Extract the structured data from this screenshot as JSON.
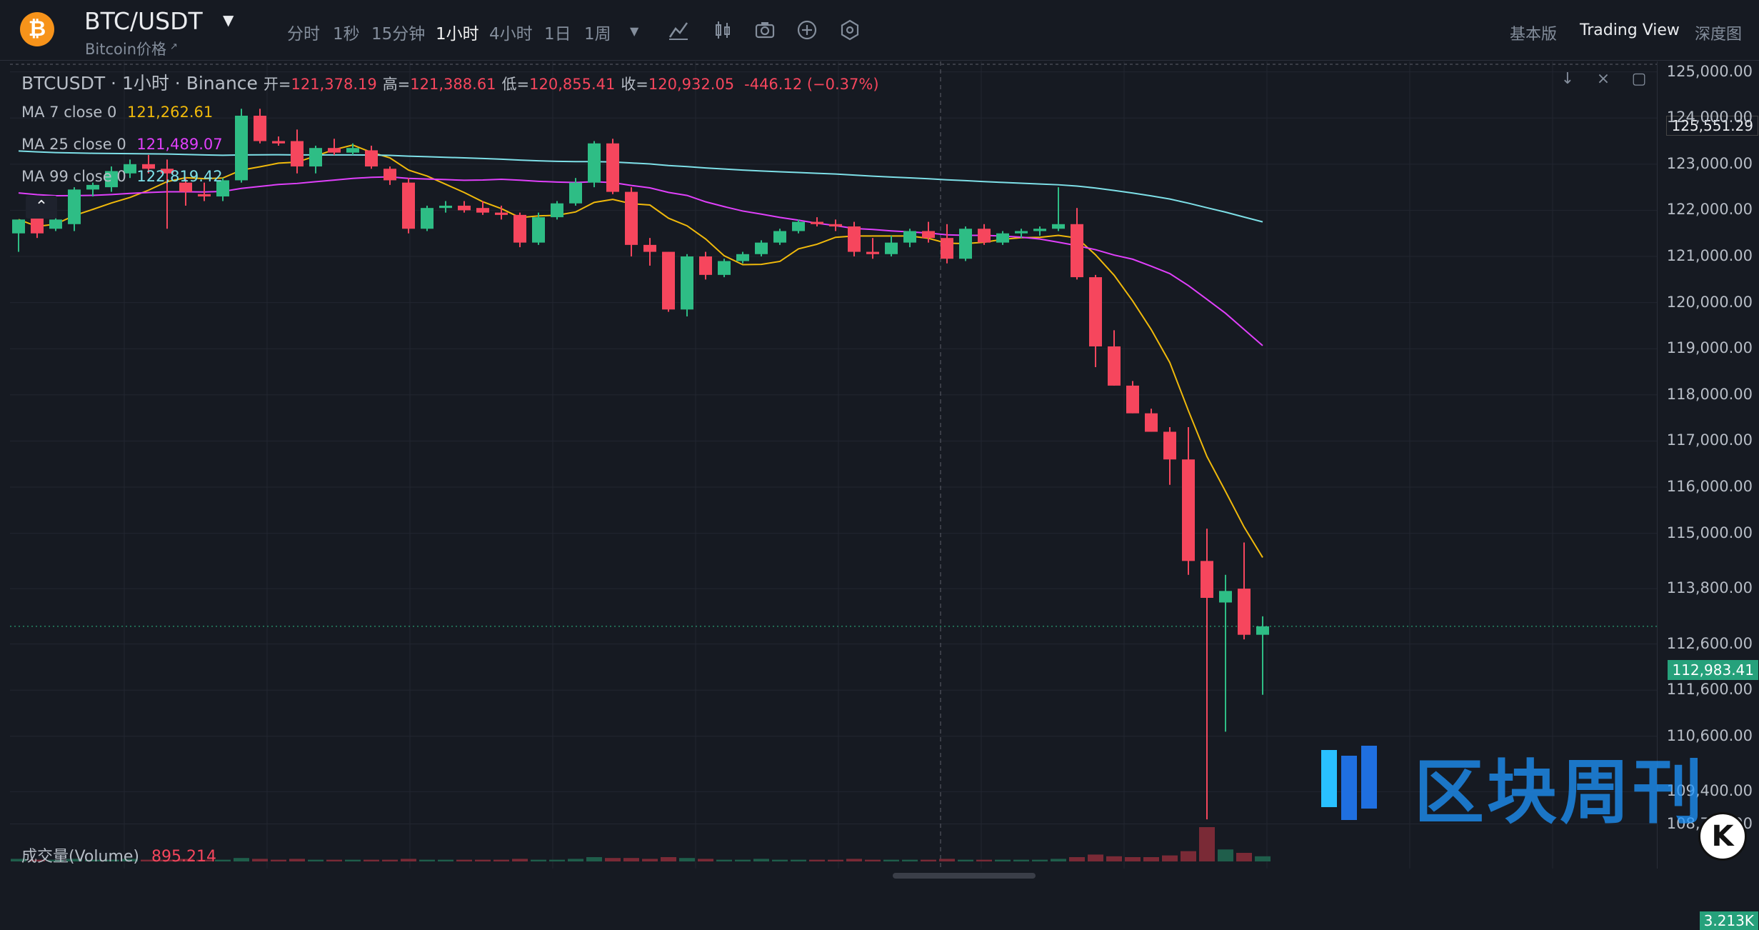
{
  "header": {
    "coin_symbol": "₿",
    "pair": "BTC/USDT",
    "pair_caret": "▼",
    "subtitle": "Bitcoin价格",
    "subtitle_arrow": "↗",
    "timeframes": [
      "分时",
      "1秒",
      "15分钟",
      "1小时",
      "4小时",
      "1日",
      "1周"
    ],
    "active_timeframe": "1小时",
    "more_caret": "▼",
    "tools": [
      "indicator-icon",
      "candle-type-icon",
      "camera-icon",
      "add-icon",
      "settings-icon"
    ],
    "right_links": [
      "基本版",
      "Trading View",
      "深度图"
    ],
    "active_view": "Trading View"
  },
  "legend": {
    "symbol_line": "BTCUSDT · 1小时 · Binance",
    "open_label": "开=",
    "open": "121,378.19",
    "high_label": "高=",
    "high": "121,388.61",
    "low_label": "低=",
    "low": "120,855.41",
    "close_label": "收=",
    "close": "120,932.05",
    "change": "-446.12 (−0.37%)"
  },
  "ma_lines": [
    {
      "label": "MA 7 close 0",
      "value": "121,262.61",
      "color": "#f0b90b"
    },
    {
      "label": "MA 25 close 0",
      "value": "121,489.07",
      "color": "#e040fb"
    },
    {
      "label": "MA 99 close 0",
      "value": "122,819.42",
      "color": "#7ee0e8"
    }
  ],
  "volume": {
    "label": "成交量(Volume)",
    "value": "895.214",
    "axis_tag": "3.213K"
  },
  "price_axis": {
    "top_price": "125,551.29",
    "labels": [
      "125,000.00",
      "124,000.00",
      "123,000.00",
      "122,000.00",
      "121,000.00",
      "120,000.00",
      "119,000.00",
      "118,000.00",
      "117,000.00",
      "116,000.00",
      "115,000.00",
      "113,800.00",
      "112,600.00",
      "111,600.00",
      "110,600.00",
      "109,400.00",
      "108,700.00"
    ],
    "current_price": "112,983.41"
  },
  "watermark": {
    "text": "区块周刊",
    "badge": "K"
  },
  "colors": {
    "up": "#2ebd85",
    "down": "#f6465d",
    "background": "#161a22"
  },
  "chart_data": {
    "type": "candlestick",
    "ylim": [
      108500,
      125600
    ],
    "series": [
      {
        "o": 121500,
        "h": 121700,
        "l": 121100,
        "c": 121800
      },
      {
        "o": 121900,
        "h": 122050,
        "l": 121400,
        "c": 121500
      },
      {
        "o": 121600,
        "h": 122050,
        "l": 121550,
        "c": 121800
      },
      {
        "o": 121700,
        "h": 122500,
        "l": 121550,
        "c": 122450
      },
      {
        "o": 122450,
        "h": 122600,
        "l": 122300,
        "c": 122550
      },
      {
        "o": 122500,
        "h": 122950,
        "l": 122400,
        "c": 122850
      },
      {
        "o": 122800,
        "h": 123100,
        "l": 122700,
        "c": 123000
      },
      {
        "o": 123000,
        "h": 123200,
        "l": 122800,
        "c": 122900
      },
      {
        "o": 122900,
        "h": 123100,
        "l": 121600,
        "c": 122800
      },
      {
        "o": 122600,
        "h": 122700,
        "l": 122100,
        "c": 122400
      },
      {
        "o": 122350,
        "h": 122600,
        "l": 122200,
        "c": 122300
      },
      {
        "o": 122300,
        "h": 122700,
        "l": 122200,
        "c": 122650
      },
      {
        "o": 122650,
        "h": 124200,
        "l": 122600,
        "c": 124050
      },
      {
        "o": 124050,
        "h": 124200,
        "l": 123450,
        "c": 123500
      },
      {
        "o": 123500,
        "h": 123600,
        "l": 123400,
        "c": 123450
      },
      {
        "o": 123500,
        "h": 123750,
        "l": 122800,
        "c": 122950
      },
      {
        "o": 122950,
        "h": 123400,
        "l": 122800,
        "c": 123350
      },
      {
        "o": 123350,
        "h": 123550,
        "l": 123200,
        "c": 123250
      },
      {
        "o": 123250,
        "h": 123450,
        "l": 123200,
        "c": 123350
      },
      {
        "o": 123300,
        "h": 123400,
        "l": 122900,
        "c": 122950
      },
      {
        "o": 122900,
        "h": 122950,
        "l": 122550,
        "c": 122650
      },
      {
        "o": 122600,
        "h": 122700,
        "l": 121500,
        "c": 121600
      },
      {
        "o": 121600,
        "h": 122100,
        "l": 121550,
        "c": 122050
      },
      {
        "o": 122050,
        "h": 122200,
        "l": 121950,
        "c": 122100
      },
      {
        "o": 122100,
        "h": 122200,
        "l": 121950,
        "c": 122000
      },
      {
        "o": 122050,
        "h": 122200,
        "l": 121900,
        "c": 121950
      },
      {
        "o": 121950,
        "h": 122100,
        "l": 121800,
        "c": 121900
      },
      {
        "o": 121900,
        "h": 121950,
        "l": 121200,
        "c": 121300
      },
      {
        "o": 121300,
        "h": 121950,
        "l": 121250,
        "c": 121850
      },
      {
        "o": 121850,
        "h": 122200,
        "l": 121800,
        "c": 122150
      },
      {
        "o": 122150,
        "h": 122700,
        "l": 122100,
        "c": 122600
      },
      {
        "o": 122600,
        "h": 123500,
        "l": 122500,
        "c": 123450
      },
      {
        "o": 123450,
        "h": 123550,
        "l": 122350,
        "c": 122400
      },
      {
        "o": 122400,
        "h": 122500,
        "l": 121000,
        "c": 121250
      },
      {
        "o": 121250,
        "h": 121400,
        "l": 120800,
        "c": 121100
      },
      {
        "o": 121100,
        "h": 121100,
        "l": 119800,
        "c": 119850
      },
      {
        "o": 119850,
        "h": 121050,
        "l": 119700,
        "c": 121000
      },
      {
        "o": 121000,
        "h": 121100,
        "l": 120500,
        "c": 120600
      },
      {
        "o": 120600,
        "h": 120950,
        "l": 120550,
        "c": 120900
      },
      {
        "o": 120900,
        "h": 121100,
        "l": 120850,
        "c": 121050
      },
      {
        "o": 121050,
        "h": 121350,
        "l": 121000,
        "c": 121300
      },
      {
        "o": 121300,
        "h": 121600,
        "l": 121250,
        "c": 121550
      },
      {
        "o": 121550,
        "h": 121800,
        "l": 121500,
        "c": 121750
      },
      {
        "o": 121750,
        "h": 121850,
        "l": 121650,
        "c": 121700
      },
      {
        "o": 121700,
        "h": 121800,
        "l": 121550,
        "c": 121650
      },
      {
        "o": 121650,
        "h": 121750,
        "l": 121000,
        "c": 121100
      },
      {
        "o": 121100,
        "h": 121400,
        "l": 120950,
        "c": 121050
      },
      {
        "o": 121050,
        "h": 121450,
        "l": 121000,
        "c": 121300
      },
      {
        "o": 121300,
        "h": 121600,
        "l": 121200,
        "c": 121550
      },
      {
        "o": 121550,
        "h": 121750,
        "l": 121300,
        "c": 121400
      },
      {
        "o": 121400,
        "h": 121700,
        "l": 120850,
        "c": 120950
      },
      {
        "o": 120950,
        "h": 121650,
        "l": 120900,
        "c": 121600
      },
      {
        "o": 121600,
        "h": 121700,
        "l": 121250,
        "c": 121300
      },
      {
        "o": 121300,
        "h": 121550,
        "l": 121250,
        "c": 121500
      },
      {
        "o": 121500,
        "h": 121600,
        "l": 121400,
        "c": 121550
      },
      {
        "o": 121550,
        "h": 121650,
        "l": 121450,
        "c": 121600
      },
      {
        "o": 121600,
        "h": 122500,
        "l": 121550,
        "c": 121700
      },
      {
        "o": 121700,
        "h": 122050,
        "l": 120500,
        "c": 120550
      },
      {
        "o": 120550,
        "h": 120600,
        "l": 118600,
        "c": 119050
      },
      {
        "o": 119050,
        "h": 119400,
        "l": 118200,
        "c": 118200
      },
      {
        "o": 118200,
        "h": 118300,
        "l": 117600,
        "c": 117600
      },
      {
        "o": 117600,
        "h": 117700,
        "l": 117200,
        "c": 117200
      },
      {
        "o": 117200,
        "h": 117300,
        "l": 116050,
        "c": 116600
      },
      {
        "o": 116600,
        "h": 117300,
        "l": 114100,
        "c": 114400
      },
      {
        "o": 114400,
        "h": 115100,
        "l": 108800,
        "c": 113600
      },
      {
        "o": 113500,
        "h": 114100,
        "l": 110700,
        "c": 113750
      },
      {
        "o": 113800,
        "h": 114800,
        "l": 112700,
        "c": 112800
      },
      {
        "o": 112800,
        "h": 113200,
        "l": 111500,
        "c": 112983
      }
    ],
    "volume_values": [
      3,
      2,
      2,
      3,
      2,
      2,
      3,
      2,
      2,
      3,
      2,
      2,
      4,
      3,
      2,
      3,
      2,
      2,
      2,
      2,
      2,
      3,
      2,
      2,
      2,
      2,
      2,
      3,
      2,
      2,
      3,
      5,
      4,
      4,
      3,
      5,
      4,
      3,
      2,
      2,
      3,
      2,
      2,
      2,
      2,
      3,
      2,
      2,
      2,
      2,
      3,
      2,
      2,
      2,
      2,
      2,
      3,
      5,
      8,
      6,
      5,
      5,
      7,
      12,
      40,
      14,
      10,
      6
    ]
  }
}
